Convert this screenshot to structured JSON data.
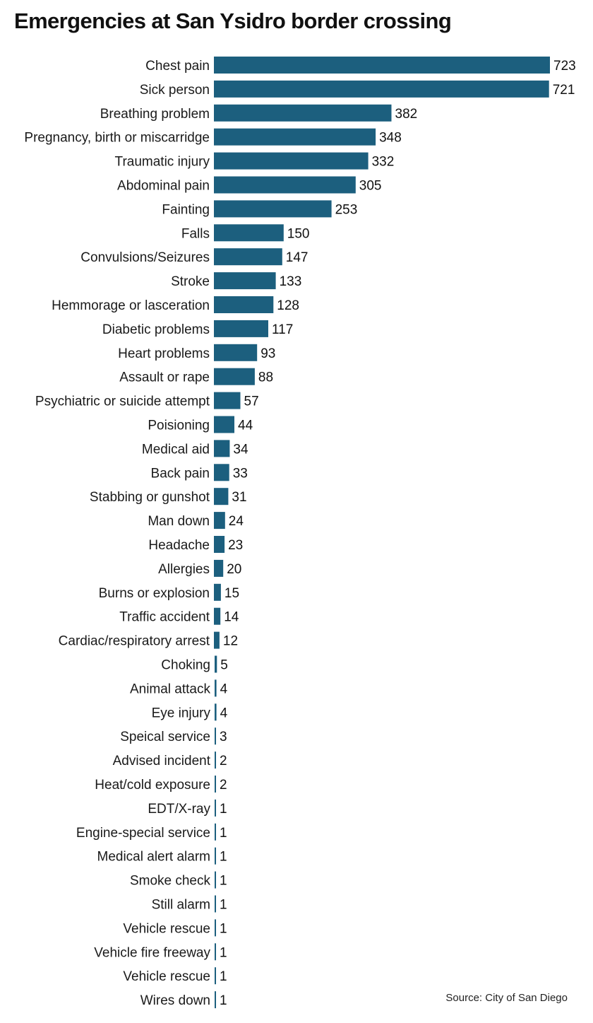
{
  "chart_data": {
    "type": "bar",
    "orientation": "horizontal",
    "title": "Emergencies at San Ysidro border crossing",
    "source": "Source: City of San Diego",
    "bar_color": "#1c5f7e",
    "categories": [
      "Chest pain",
      "Sick person",
      "Breathing problem",
      "Pregnancy, birth or miscarridge",
      "Traumatic injury",
      "Abdominal pain",
      "Fainting",
      "Falls",
      "Convulsions/Seizures",
      "Stroke",
      "Hemmorage or lasceration",
      "Diabetic problems",
      "Heart problems",
      "Assault or rape",
      "Psychiatric or suicide attempt",
      "Poisioning",
      "Medical aid",
      "Back pain",
      "Stabbing or gunshot",
      "Man down",
      "Headache",
      "Allergies",
      "Burns or explosion",
      "Traffic accident",
      "Cardiac/respiratory arrest",
      "Choking",
      "Animal attack",
      "Eye injury",
      "Speical service",
      "Advised incident",
      "Heat/cold exposure",
      "EDT/X-ray",
      "Engine-special service",
      "Medical alert alarm",
      "Smoke check",
      "Still alarm",
      "Vehicle rescue",
      "Vehicle fire freeway",
      "Vehicle rescue",
      "Wires down"
    ],
    "values": [
      723,
      721,
      382,
      348,
      332,
      305,
      253,
      150,
      147,
      133,
      128,
      117,
      93,
      88,
      57,
      44,
      34,
      33,
      31,
      24,
      23,
      20,
      15,
      14,
      12,
      5,
      4,
      4,
      3,
      2,
      2,
      1,
      1,
      1,
      1,
      1,
      1,
      1,
      1,
      1
    ],
    "xlim": [
      0,
      723
    ],
    "grid": false,
    "legend": "none"
  }
}
